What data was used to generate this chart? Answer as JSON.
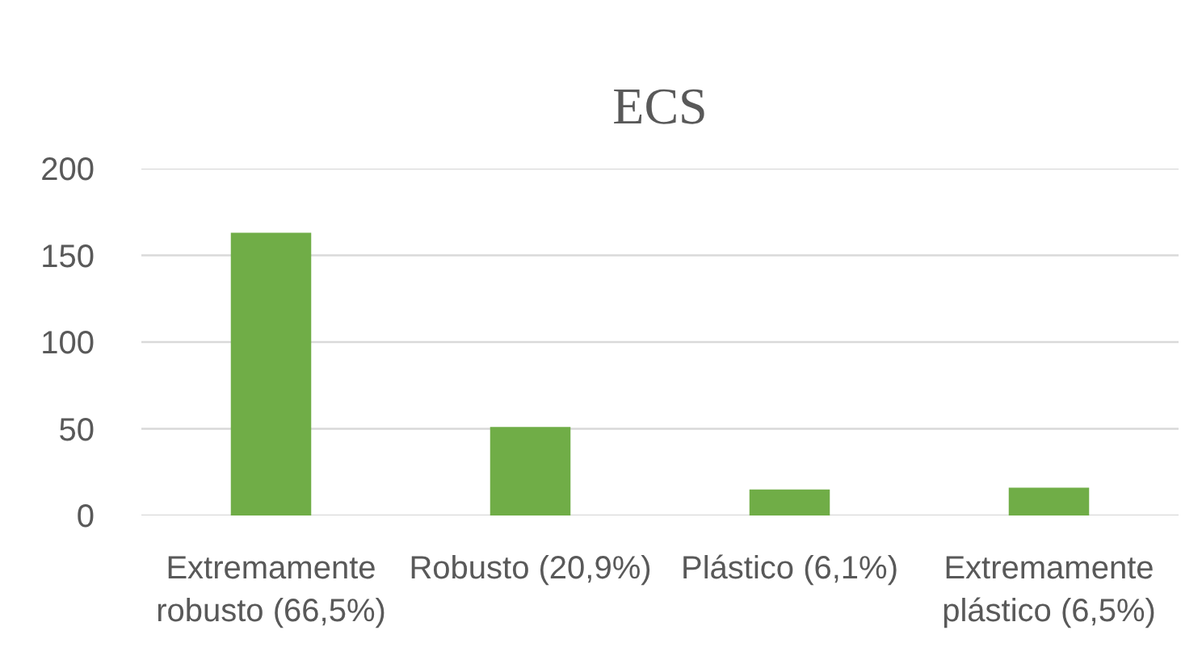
{
  "chart_data": {
    "type": "bar",
    "title": "ECS",
    "categories": [
      "Extremamente robusto (66,5%)",
      "Robusto (20,9%)",
      "Plástico (6,1%)",
      "Extremamente plástico (6,5%)"
    ],
    "values": [
      163,
      51,
      15,
      16
    ],
    "color": "#70ad47",
    "ylim": [
      0,
      200
    ],
    "yticks": [
      0,
      50,
      100,
      150,
      200
    ],
    "grid": "y"
  }
}
